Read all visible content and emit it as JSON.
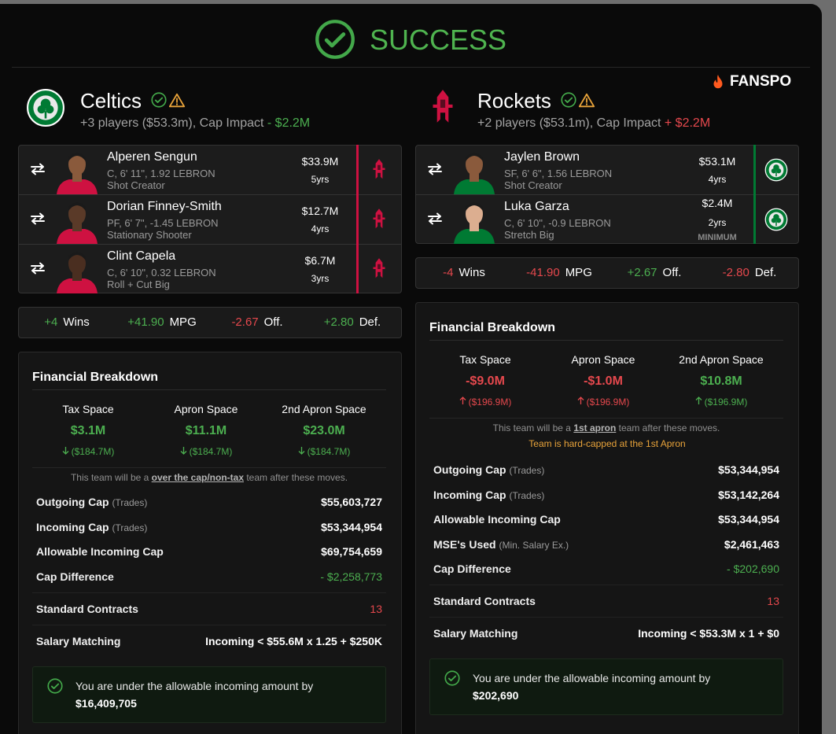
{
  "header": {
    "title": "SUCCESS",
    "brand": "FANSPO"
  },
  "teams": [
    {
      "name": "Celtics",
      "color": "#007a33",
      "summary": "+3 players ($53.3m), Cap Impact ",
      "cap_impact": "- $2.2M",
      "cap_impact_color": "#4caf50",
      "players": [
        {
          "name": "Alperen Sengun",
          "details": "C, 6' 11\", 1.92 LEBRON",
          "role": "Shot Creator",
          "salary": "$33.9M",
          "years": "5yrs"
        },
        {
          "name": "Dorian Finney-Smith",
          "details": "PF, 6' 7\", -1.45 LEBRON",
          "role": "Stationary Shooter",
          "salary": "$12.7M",
          "years": "4yrs"
        },
        {
          "name": "Clint Capela",
          "details": "C, 6' 10\", 0.32 LEBRON",
          "role": "Roll + Cut Big",
          "salary": "$6.7M",
          "years": "3yrs"
        }
      ],
      "impact": [
        {
          "value": "+4",
          "label": "Wins",
          "color": "#4caf50"
        },
        {
          "value": "+41.90",
          "label": "MPG",
          "color": "#4caf50"
        },
        {
          "value": "-2.67",
          "label": "Off.",
          "color": "#e5484d"
        },
        {
          "value": "+2.80",
          "label": "Def.",
          "color": "#4caf50"
        }
      ],
      "financial": {
        "title": "Financial Breakdown",
        "spaces": [
          {
            "label": "Tax Space",
            "value": "$3.1M",
            "change": "($184.7M)",
            "trend": "down",
            "color": "#4caf50"
          },
          {
            "label": "Apron Space",
            "value": "$11.1M",
            "change": "($184.7M)",
            "trend": "down",
            "color": "#4caf50"
          },
          {
            "label": "2nd Apron Space",
            "value": "$23.0M",
            "change": "($184.7M)",
            "trend": "down",
            "color": "#4caf50"
          }
        ],
        "note": {
          "before": "This team will be a ",
          "highlight": "over the cap/non-tax",
          "after": " team after these moves."
        },
        "cap_rows": [
          {
            "label": "Outgoing Cap",
            "qualifier": "(Trades)",
            "value": "$55,603,727"
          },
          {
            "label": "Incoming Cap",
            "qualifier": "(Trades)",
            "value": "$53,344,954"
          },
          {
            "label": "Allowable Incoming Cap",
            "value": "$69,754,659"
          },
          {
            "label": "Cap Difference",
            "value": "- $2,258,773",
            "color": "#4caf50"
          }
        ],
        "other_rows": [
          {
            "label": "Standard Contracts",
            "value": "13",
            "color": "#e5484d"
          },
          {
            "label": "Salary Matching",
            "value": "Incoming < $55.6M x 1.25 + $250K"
          }
        ],
        "status": {
          "message": "You are under the allowable incoming amount by",
          "amount": "$16,409,705"
        }
      }
    },
    {
      "name": "Rockets",
      "color": "#ce1141",
      "summary": "+2 players ($53.1m), Cap Impact ",
      "cap_impact": "+ $2.2M",
      "cap_impact_color": "#e5484d",
      "players": [
        {
          "name": "Jaylen Brown",
          "details": "SF, 6' 6\", 1.56 LEBRON",
          "role": "Shot Creator",
          "salary": "$53.1M",
          "years": "4yrs"
        },
        {
          "name": "Luka Garza",
          "details": "C, 6' 10\", -0.9 LEBRON",
          "role": "Stretch Big",
          "salary": "$2.4M",
          "years": "2yrs",
          "tag": "MINIMUM"
        }
      ],
      "impact": [
        {
          "value": "-4",
          "label": "Wins",
          "color": "#e5484d"
        },
        {
          "value": "-41.90",
          "label": "MPG",
          "color": "#e5484d"
        },
        {
          "value": "+2.67",
          "label": "Off.",
          "color": "#4caf50"
        },
        {
          "value": "-2.80",
          "label": "Def.",
          "color": "#e5484d"
        }
      ],
      "financial": {
        "title": "Financial Breakdown",
        "spaces": [
          {
            "label": "Tax Space",
            "value": "-$9.0M",
            "change": "($196.9M)",
            "trend": "up",
            "color": "#e5484d"
          },
          {
            "label": "Apron Space",
            "value": "-$1.0M",
            "change": "($196.9M)",
            "trend": "up",
            "color": "#e5484d"
          },
          {
            "label": "2nd Apron Space",
            "value": "$10.8M",
            "change": "($196.9M)",
            "trend": "up",
            "color": "#4caf50"
          }
        ],
        "note": {
          "before": "This team will be a ",
          "highlight": "1st apron",
          "after": " team after these moves."
        },
        "warning": "Team is hard-capped at the 1st Apron",
        "cap_rows": [
          {
            "label": "Outgoing Cap",
            "qualifier": "(Trades)",
            "value": "$53,344,954"
          },
          {
            "label": "Incoming Cap",
            "qualifier": "(Trades)",
            "value": "$53,142,264"
          },
          {
            "label": "Allowable Incoming Cap",
            "value": "$53,344,954"
          },
          {
            "label": "MSE's Used",
            "qualifier": "(Min. Salary Ex.)",
            "value": "$2,461,463"
          },
          {
            "label": "Cap Difference",
            "value": "- $202,690",
            "color": "#4caf50"
          }
        ],
        "other_rows": [
          {
            "label": "Standard Contracts",
            "value": "13",
            "color": "#e5484d"
          },
          {
            "label": "Salary Matching",
            "value": "Incoming < $53.3M x 1 + $0"
          }
        ],
        "status": {
          "message": "You are under the allowable incoming amount by",
          "amount": "$202,690"
        }
      }
    }
  ]
}
